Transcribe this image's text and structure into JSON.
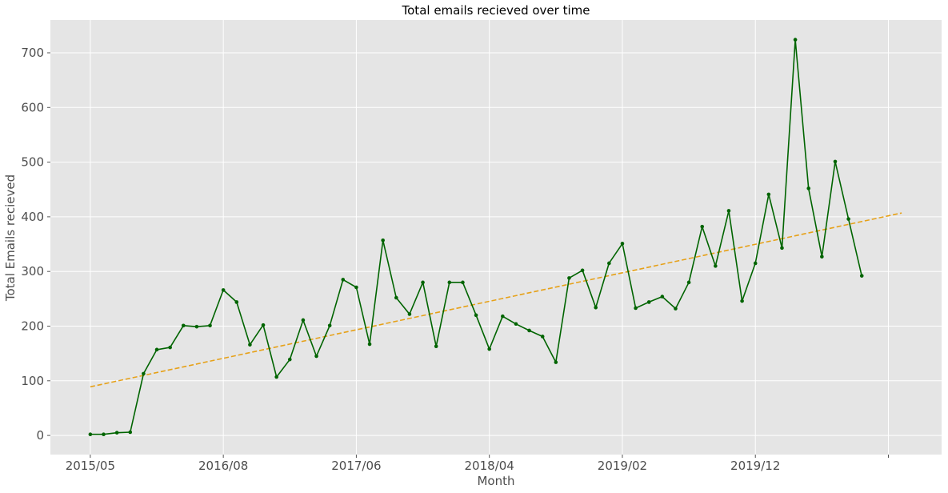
{
  "chart_data": {
    "type": "line",
    "title": "Total emails recieved over time",
    "xlabel": "Month",
    "ylabel": "Total Emails recieved",
    "x_ticks": [
      {
        "index": 0,
        "label": "2015/05"
      },
      {
        "index": 10,
        "label": "2016/08"
      },
      {
        "index": 20,
        "label": "2017/06"
      },
      {
        "index": 30,
        "label": "2018/04"
      },
      {
        "index": 40,
        "label": "2019/02"
      },
      {
        "index": 50,
        "label": "2019/12"
      },
      {
        "index": 60,
        "label": ""
      }
    ],
    "y_ticks": [
      0,
      100,
      200,
      300,
      400,
      500,
      600,
      700
    ],
    "ylim": [
      -35,
      760
    ],
    "xlim": [
      -3,
      64
    ],
    "grid": true,
    "series": [
      {
        "kind": "actual",
        "color": "#006400",
        "marker": "dot",
        "values": [
          2,
          2,
          5,
          6,
          113,
          157,
          161,
          201,
          199,
          201,
          266,
          244,
          166,
          202,
          107,
          139,
          211,
          145,
          201,
          285,
          271,
          167,
          357,
          252,
          222,
          280,
          163,
          280,
          280,
          220,
          158,
          218,
          204,
          192,
          181,
          134,
          288,
          302,
          234,
          315,
          351,
          233,
          244,
          254,
          232,
          280,
          382,
          310,
          411,
          246,
          315,
          441,
          343,
          724,
          452,
          327,
          501,
          396,
          292
        ]
      },
      {
        "kind": "trend",
        "color": "#e6a118",
        "style": "dashed",
        "x": [
          0,
          61
        ],
        "values": [
          89,
          407
        ]
      }
    ]
  },
  "colors": {
    "plot_background": "#e5e5e5",
    "grid": "#ffffff"
  }
}
